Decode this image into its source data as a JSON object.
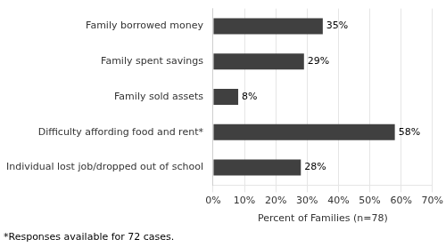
{
  "chart_data": {
    "type": "bar",
    "orientation": "horizontal",
    "categories": [
      "Individual lost job/dropped out of school",
      "Difficulty affording food and rent*",
      "Family sold assets",
      "Family spent savings",
      "Family borrowed money"
    ],
    "values": [
      28,
      58,
      8,
      29,
      35
    ],
    "value_labels": [
      "28%",
      "58%",
      "8%",
      "29%",
      "35%"
    ],
    "data_labels": true,
    "color": "#404040",
    "xlabel": "Percent of Families (n=78)",
    "xlim": [
      0,
      70
    ],
    "xticks": [
      {
        "value": 0,
        "label": "0%"
      },
      {
        "value": 10,
        "label": "10%"
      },
      {
        "value": 20,
        "label": "20%"
      },
      {
        "value": 30,
        "label": "30%"
      },
      {
        "value": 40,
        "label": "40%"
      },
      {
        "value": 50,
        "label": "50%"
      },
      {
        "value": 60,
        "label": "60%"
      },
      {
        "value": 70,
        "label": "70%"
      }
    ],
    "grid": "x",
    "footnote": "*Responses available for 72 cases."
  }
}
